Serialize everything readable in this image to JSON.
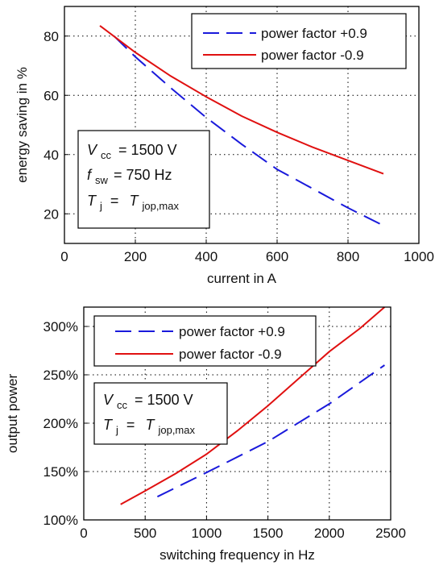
{
  "chart_data": [
    {
      "type": "line",
      "xlabel": "current in A",
      "ylabel": "energy saving in %",
      "xlim": [
        0,
        1000
      ],
      "ylim": [
        10,
        90
      ],
      "xticks": [
        0,
        200,
        400,
        600,
        800,
        1000
      ],
      "yticks": [
        20,
        40,
        60,
        80
      ],
      "grid": true,
      "legend_position": "top-right",
      "series": [
        {
          "name": "power factor +0.9",
          "color": "#1a1adb",
          "style": "dashed",
          "x": [
            140,
            200,
            300,
            400,
            500,
            600,
            700,
            800,
            900
          ],
          "y": [
            80,
            73,
            62.5,
            52.5,
            43.5,
            35,
            28.5,
            22,
            16
          ]
        },
        {
          "name": "power factor -0.9",
          "color": "#e01010",
          "style": "solid",
          "x": [
            100,
            150,
            200,
            300,
            400,
            500,
            600,
            700,
            800,
            900
          ],
          "y": [
            83.5,
            79,
            74.5,
            66.5,
            59.5,
            53,
            47.5,
            42.5,
            38,
            33.5
          ]
        }
      ],
      "annotation": {
        "line1": {
          "sym": "V",
          "sub": "cc",
          "rest": "= 1500 V"
        },
        "line2": {
          "sym": "f",
          "sub": "sw",
          "rest": "= 750 Hz"
        },
        "line3": {
          "sym": "T",
          "sub": "j",
          "eq": "=",
          "sym2": "T",
          "sub2": "jop,max"
        }
      }
    },
    {
      "type": "line",
      "xlabel": "switching frequency in Hz",
      "ylabel": "output power",
      "xlim": [
        0,
        2500
      ],
      "ylim": [
        100,
        320
      ],
      "xticks": [
        0,
        500,
        1000,
        1500,
        2000,
        2500
      ],
      "yticks": [
        100,
        150,
        200,
        250,
        300
      ],
      "ytick_suffix": "%",
      "grid": true,
      "legend_position": "top-left",
      "series": [
        {
          "name": "power factor +0.9",
          "color": "#1a1adb",
          "style": "dashed",
          "x": [
            600,
            1000,
            1500,
            2000,
            2450
          ],
          "y": [
            124,
            149,
            181,
            220,
            260
          ]
        },
        {
          "name": "power factor -0.9",
          "color": "#e01010",
          "style": "solid",
          "x": [
            300,
            500,
            750,
            1000,
            1250,
            1500,
            1750,
            2000,
            2250,
            2450
          ],
          "y": [
            116,
            130,
            148,
            168,
            192,
            218,
            246,
            274,
            298,
            320
          ]
        }
      ],
      "annotation": {
        "line1": {
          "sym": "V",
          "sub": "cc",
          "rest": "= 1500 V"
        },
        "line3": {
          "sym": "T",
          "sub": "j",
          "eq": "=",
          "sym2": "T",
          "sub2": "jop,max"
        }
      }
    }
  ]
}
